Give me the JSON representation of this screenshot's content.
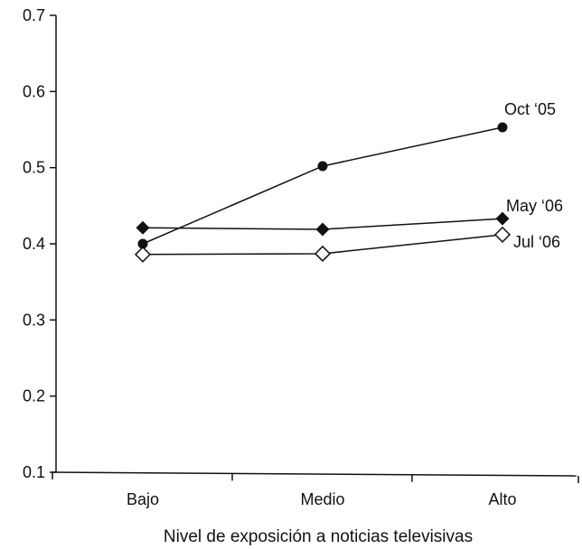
{
  "chart_data": {
    "type": "line",
    "categories": [
      "Bajo",
      "Medio",
      "Alto"
    ],
    "xlabel": "Nivel de exposición a noticias televisivas",
    "ylabel": "",
    "ylim": [
      0.1,
      0.7
    ],
    "yticks": [
      "0.1",
      "0.2",
      "0.3",
      "0.4",
      "0.5",
      "0.6",
      "0.7"
    ],
    "grid": false,
    "series": [
      {
        "name": "Oct ‘05",
        "marker": "filled-circle",
        "values": [
          0.4,
          0.502,
          0.553
        ]
      },
      {
        "name": "May ‘06",
        "marker": "filled-diamond",
        "values": [
          0.421,
          0.419,
          0.433
        ]
      },
      {
        "name": "Jul ‘06",
        "marker": "open-diamond",
        "values": [
          0.386,
          0.387,
          0.412
        ]
      }
    ],
    "colors": {
      "line": "#111111",
      "marker": "#111111",
      "background": "#ffffff"
    }
  }
}
